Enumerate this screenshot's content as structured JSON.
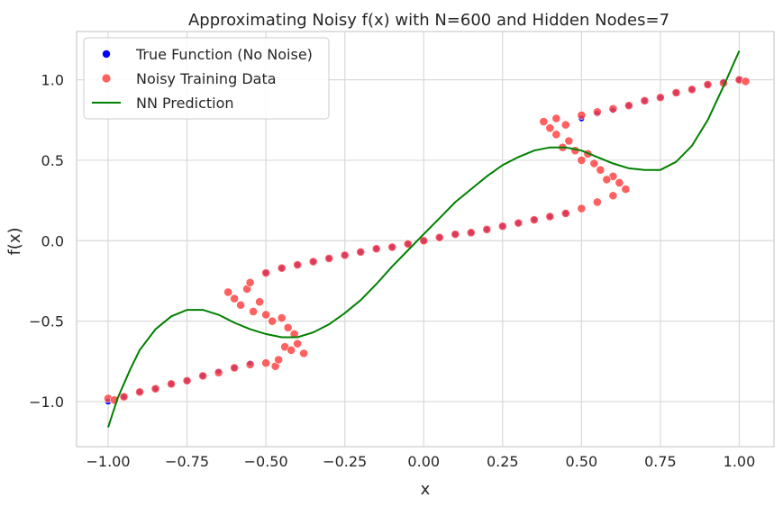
{
  "chart_data": {
    "type": "scatter",
    "title": "Approximating Noisy f(x) with N=600 and Hidden Nodes=7",
    "xlabel": "x",
    "ylabel": "f(x)",
    "xlim": [
      -1.1,
      1.11
    ],
    "ylim": [
      -1.28,
      1.3
    ],
    "xticks": [
      -1.0,
      -0.75,
      -0.5,
      -0.25,
      0.0,
      0.25,
      0.5,
      0.75,
      1.0
    ],
    "xtick_labels": [
      "−1.00",
      "−0.75",
      "−0.50",
      "−0.25",
      "0.00",
      "0.25",
      "0.50",
      "0.75",
      "1.00"
    ],
    "yticks": [
      -1.0,
      -0.5,
      0.0,
      0.5,
      1.0
    ],
    "ytick_labels": [
      "−1.0",
      "−0.5",
      "0.0",
      "0.5",
      "1.0"
    ],
    "grid": true,
    "legend_position": "top-left",
    "series": [
      {
        "name": "True Function (No Noise)",
        "kind": "scatter",
        "color": "#0000ff",
        "x": [
          -1.0,
          -0.95,
          -0.9,
          -0.85,
          -0.8,
          -0.75,
          -0.7,
          -0.65,
          -0.6,
          -0.55,
          -0.5,
          -0.45,
          -0.4,
          -0.35,
          -0.3,
          -0.25,
          -0.2,
          -0.15,
          -0.1,
          -0.05,
          0.0,
          0.05,
          0.1,
          0.15,
          0.2,
          0.25,
          0.3,
          0.35,
          0.4,
          0.45,
          0.5,
          0.55,
          0.6,
          0.65,
          0.7,
          0.75,
          0.8,
          0.85,
          0.9,
          0.95,
          1.0
        ],
        "y": [
          -1.0,
          -0.97,
          -0.94,
          -0.92,
          -0.89,
          -0.87,
          -0.84,
          -0.81,
          -0.79,
          -0.76,
          -0.2,
          -0.17,
          -0.15,
          -0.13,
          -0.11,
          -0.09,
          -0.07,
          -0.05,
          -0.04,
          -0.02,
          0.0,
          0.02,
          0.04,
          0.05,
          0.07,
          0.09,
          0.11,
          0.13,
          0.15,
          0.17,
          0.76,
          0.79,
          0.81,
          0.84,
          0.87,
          0.89,
          0.92,
          0.94,
          0.97,
          0.99,
          1.0
        ]
      },
      {
        "name": "Noisy Training Data",
        "kind": "scatter",
        "color": "#ff4444",
        "x": [
          -1.0,
          -0.98,
          -0.95,
          -0.9,
          -0.85,
          -0.8,
          -0.75,
          -0.7,
          -0.65,
          -0.6,
          -0.55,
          -0.5,
          -0.47,
          -0.46,
          -0.44,
          -0.42,
          -0.4,
          -0.38,
          -0.62,
          -0.6,
          -0.58,
          -0.56,
          -0.54,
          -0.52,
          -0.5,
          -0.48,
          -0.45,
          -0.43,
          -0.41,
          -0.55,
          -0.5,
          -0.45,
          -0.4,
          -0.35,
          -0.3,
          -0.25,
          -0.2,
          -0.15,
          -0.1,
          -0.05,
          0.0,
          0.05,
          0.1,
          0.15,
          0.2,
          0.25,
          0.3,
          0.35,
          0.4,
          0.45,
          0.5,
          0.55,
          0.6,
          0.64,
          0.62,
          0.6,
          0.58,
          0.56,
          0.54,
          0.52,
          0.5,
          0.48,
          0.46,
          0.44,
          0.42,
          0.4,
          0.38,
          0.42,
          0.45,
          0.5,
          0.55,
          0.6,
          0.65,
          0.7,
          0.75,
          0.8,
          0.85,
          0.9,
          0.95,
          1.0,
          1.02
        ],
        "y": [
          -0.98,
          -0.99,
          -0.97,
          -0.94,
          -0.92,
          -0.89,
          -0.87,
          -0.84,
          -0.82,
          -0.79,
          -0.77,
          -0.76,
          -0.78,
          -0.74,
          -0.66,
          -0.68,
          -0.64,
          -0.7,
          -0.32,
          -0.36,
          -0.4,
          -0.3,
          -0.44,
          -0.38,
          -0.46,
          -0.5,
          -0.48,
          -0.54,
          -0.58,
          -0.26,
          -0.2,
          -0.17,
          -0.15,
          -0.13,
          -0.11,
          -0.09,
          -0.07,
          -0.05,
          -0.04,
          -0.02,
          0.0,
          0.02,
          0.04,
          0.05,
          0.07,
          0.09,
          0.11,
          0.13,
          0.15,
          0.17,
          0.2,
          0.24,
          0.28,
          0.32,
          0.36,
          0.4,
          0.38,
          0.44,
          0.48,
          0.54,
          0.5,
          0.56,
          0.62,
          0.58,
          0.66,
          0.7,
          0.74,
          0.76,
          0.72,
          0.78,
          0.8,
          0.82,
          0.84,
          0.87,
          0.89,
          0.92,
          0.94,
          0.97,
          0.98,
          1.0,
          0.99
        ]
      },
      {
        "name": "NN Prediction",
        "kind": "line",
        "color": "#008000",
        "x": [
          -1.0,
          -0.97,
          -0.93,
          -0.9,
          -0.85,
          -0.8,
          -0.75,
          -0.7,
          -0.65,
          -0.6,
          -0.55,
          -0.5,
          -0.45,
          -0.4,
          -0.35,
          -0.3,
          -0.25,
          -0.2,
          -0.15,
          -0.1,
          -0.05,
          0.0,
          0.05,
          0.1,
          0.15,
          0.2,
          0.25,
          0.3,
          0.35,
          0.4,
          0.45,
          0.5,
          0.55,
          0.6,
          0.65,
          0.7,
          0.75,
          0.8,
          0.85,
          0.9,
          0.95,
          1.0
        ],
        "y": [
          -1.16,
          -0.98,
          -0.8,
          -0.68,
          -0.55,
          -0.47,
          -0.43,
          -0.43,
          -0.46,
          -0.51,
          -0.55,
          -0.58,
          -0.6,
          -0.6,
          -0.57,
          -0.52,
          -0.45,
          -0.37,
          -0.27,
          -0.16,
          -0.06,
          0.04,
          0.14,
          0.24,
          0.32,
          0.4,
          0.47,
          0.52,
          0.56,
          0.58,
          0.58,
          0.56,
          0.52,
          0.48,
          0.45,
          0.44,
          0.44,
          0.49,
          0.59,
          0.75,
          0.96,
          1.18
        ]
      }
    ]
  }
}
